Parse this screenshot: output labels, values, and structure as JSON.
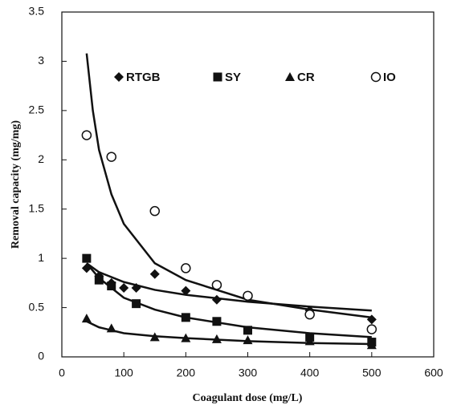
{
  "chart_data": {
    "type": "scatter",
    "xlabel": "Coagulant dose (mg/L)",
    "ylabel": "Removal capacity (mg/mg)",
    "xlim": [
      0,
      600
    ],
    "xticks": [
      0,
      100,
      200,
      300,
      400,
      500,
      600
    ],
    "ylim": [
      0,
      3.5
    ],
    "yticks": [
      0,
      0.5,
      1,
      1.5,
      2,
      2.5,
      3,
      3.5
    ],
    "legend": "top",
    "series": [
      {
        "name": "RTGB",
        "color": "#111111",
        "marker": "diamond",
        "x": [
          40,
          60,
          80,
          100,
          120,
          150,
          200,
          250,
          300,
          400,
          500
        ],
        "values": [
          0.9,
          0.82,
          0.75,
          0.7,
          0.7,
          0.84,
          0.67,
          0.58,
          0.6,
          0.47,
          0.38
        ]
      },
      {
        "name": "SY",
        "color": "#111111",
        "marker": "square",
        "x": [
          40,
          60,
          80,
          120,
          200,
          250,
          300,
          400,
          500
        ],
        "values": [
          1.0,
          0.78,
          0.72,
          0.54,
          0.4,
          0.36,
          0.27,
          0.2,
          0.15
        ]
      },
      {
        "name": "CR",
        "color": "#111111",
        "marker": "triangle",
        "x": [
          40,
          80,
          150,
          200,
          250,
          300,
          400,
          500
        ],
        "values": [
          0.39,
          0.29,
          0.2,
          0.19,
          0.18,
          0.17,
          0.16,
          0.12
        ]
      },
      {
        "name": "IO",
        "color": "#111111",
        "marker": "open-circle",
        "x": [
          40,
          80,
          150,
          200,
          250,
          300,
          400,
          500
        ],
        "values": [
          2.25,
          2.03,
          1.48,
          0.9,
          0.73,
          0.62,
          0.43,
          0.28
        ]
      }
    ],
    "trend_lines": [
      {
        "x": [
          40,
          60,
          100,
          150,
          200,
          300,
          400,
          500
        ],
        "values": [
          0.95,
          0.86,
          0.76,
          0.68,
          0.63,
          0.56,
          0.51,
          0.47
        ]
      },
      {
        "x": [
          40,
          60,
          100,
          150,
          200,
          300,
          400,
          500
        ],
        "values": [
          0.95,
          0.8,
          0.6,
          0.48,
          0.4,
          0.3,
          0.24,
          0.2
        ]
      },
      {
        "x": [
          40,
          60,
          100,
          150,
          200,
          300,
          400,
          500
        ],
        "values": [
          0.36,
          0.3,
          0.24,
          0.21,
          0.19,
          0.16,
          0.14,
          0.13
        ]
      },
      {
        "x": [
          40,
          50,
          60,
          80,
          100,
          150,
          200,
          300,
          400,
          500
        ],
        "values": [
          3.08,
          2.5,
          2.1,
          1.65,
          1.35,
          0.95,
          0.78,
          0.58,
          0.48,
          0.4
        ]
      }
    ]
  }
}
